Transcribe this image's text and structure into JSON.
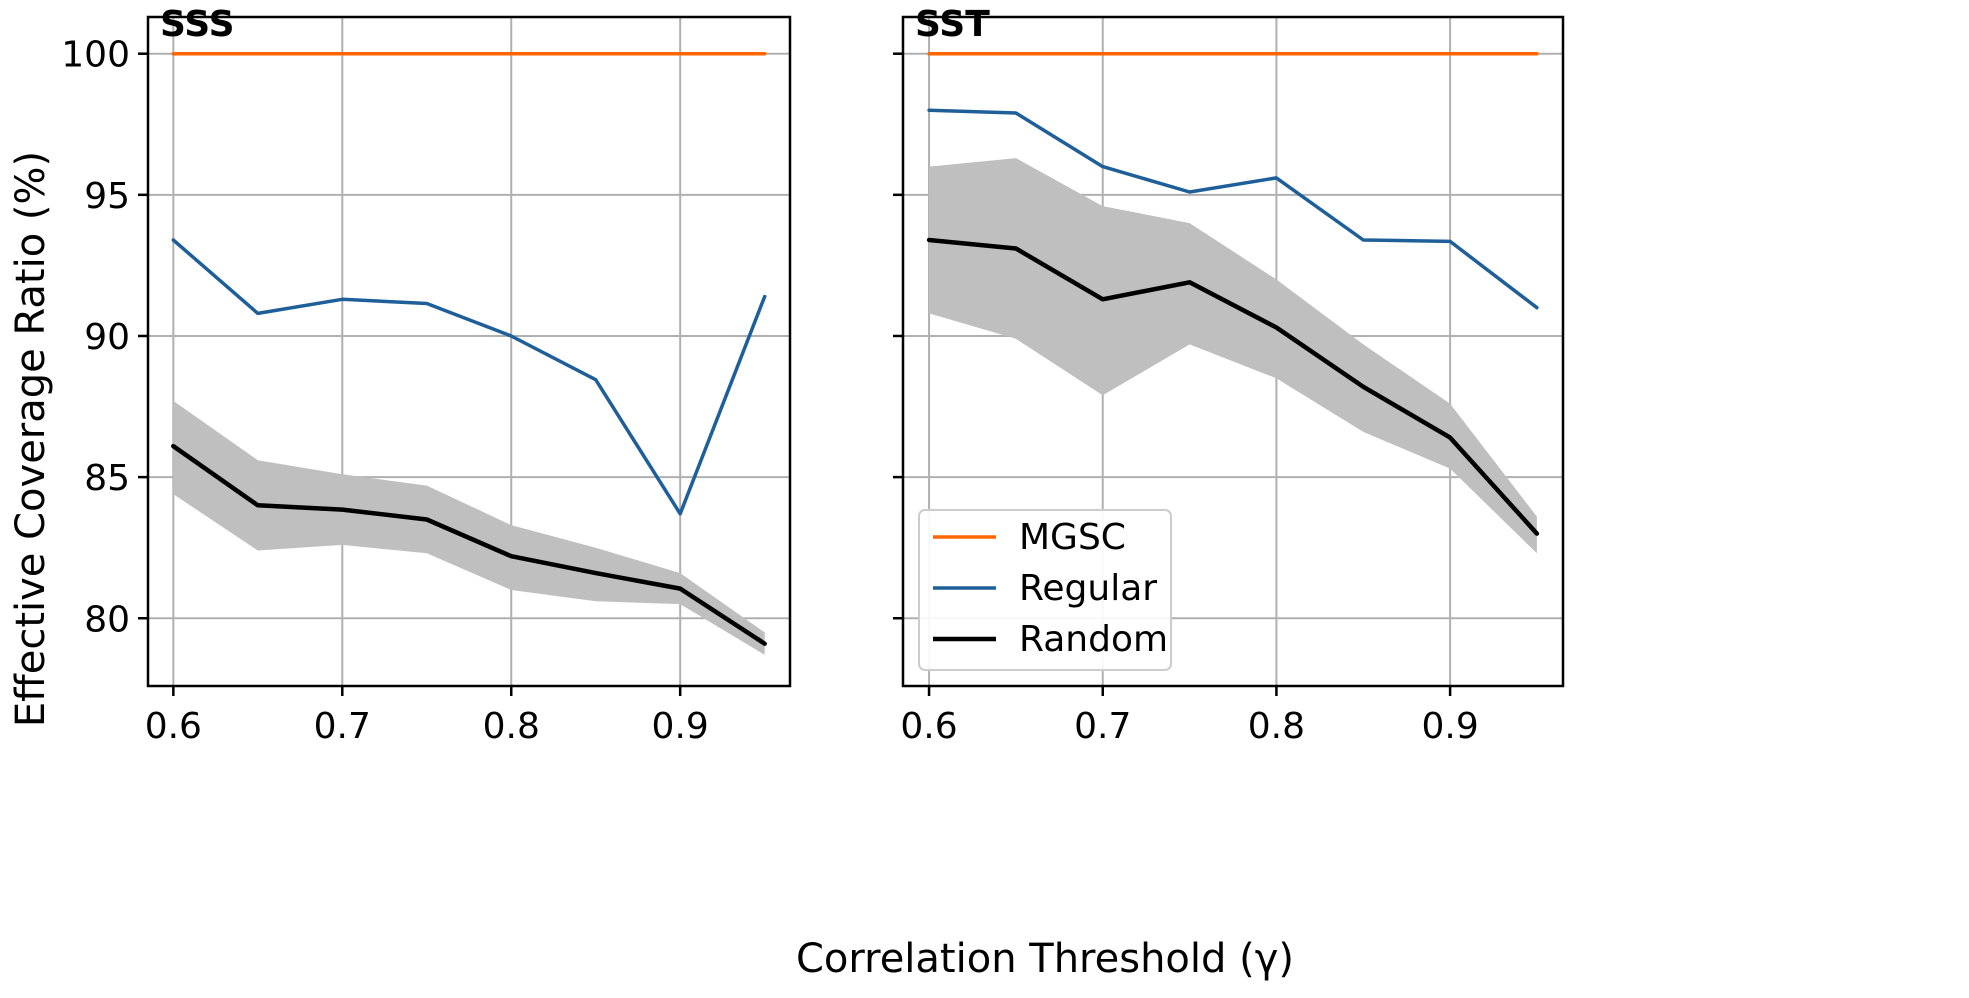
{
  "chart_data": {
    "type": "line",
    "xlabel": "Correlation Threshold (γ)",
    "ylabel": "Effective Coverage Ratio (%)",
    "xlim": [
      0.585,
      0.965
    ],
    "ylim": [
      77.6,
      101.3
    ],
    "xticks": [
      0.6,
      0.7,
      0.8,
      0.9
    ],
    "xtick_labels": [
      "0.6",
      "0.7",
      "0.8",
      "0.9"
    ],
    "yticks": [
      80,
      85,
      90,
      95,
      100
    ],
    "ytick_labels": [
      "80",
      "85",
      "90",
      "95",
      "100"
    ],
    "grid": true,
    "legend": {
      "panel": "SST",
      "location": "lower-left",
      "entries": [
        "MGSC",
        "Regular",
        "Random"
      ]
    },
    "colors": {
      "MGSC": "#ff6600",
      "Regular": "#1f5f99",
      "Random": "#000000",
      "band": "#bfbfbf"
    },
    "x": [
      0.6,
      0.65,
      0.7,
      0.75,
      0.8,
      0.85,
      0.9,
      0.95
    ],
    "panels": [
      {
        "title": "SSS",
        "series": [
          {
            "name": "MGSC",
            "values": [
              100,
              100,
              100,
              100,
              100,
              100,
              100,
              100
            ]
          },
          {
            "name": "Regular",
            "values": [
              93.4,
              90.8,
              91.3,
              91.15,
              90.0,
              88.45,
              83.7,
              91.4
            ]
          },
          {
            "name": "Random",
            "values": [
              86.1,
              84.0,
              83.85,
              83.5,
              82.2,
              81.6,
              81.05,
              79.1
            ],
            "band_lower": [
              84.4,
              82.4,
              82.6,
              82.3,
              81.0,
              80.6,
              80.5,
              78.7
            ],
            "band_upper": [
              87.7,
              85.6,
              85.1,
              84.7,
              83.3,
              82.5,
              81.6,
              79.5
            ]
          }
        ]
      },
      {
        "title": "SST",
        "series": [
          {
            "name": "MGSC",
            "values": [
              100,
              100,
              100,
              100,
              100,
              100,
              100,
              100
            ]
          },
          {
            "name": "Regular",
            "values": [
              98.0,
              97.9,
              96.0,
              95.1,
              95.6,
              93.4,
              93.35,
              91.0
            ]
          },
          {
            "name": "Random",
            "values": [
              93.4,
              93.1,
              91.3,
              91.9,
              90.3,
              88.2,
              86.4,
              83.0
            ],
            "band_lower": [
              90.8,
              89.9,
              87.9,
              89.7,
              88.5,
              86.6,
              85.3,
              82.3
            ],
            "band_upper": [
              96.0,
              96.3,
              94.6,
              94.0,
              92.0,
              89.7,
              87.6,
              83.6
            ]
          }
        ]
      }
    ]
  }
}
